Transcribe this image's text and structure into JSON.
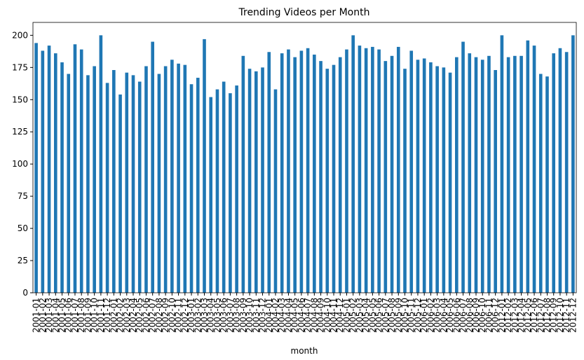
{
  "chart_data": {
    "type": "bar",
    "title": "Trending Videos per Month",
    "xlabel": "month",
    "categories": [
      "2001-01",
      "2001-02",
      "2001-03",
      "2001-04",
      "2001-05",
      "2001-06",
      "2001-07",
      "2001-08",
      "2001-09",
      "2001-10",
      "2001-11",
      "2001-12",
      "2002-01",
      "2002-02",
      "2002-03",
      "2002-04",
      "2002-05",
      "2002-06",
      "2002-07",
      "2002-08",
      "2002-09",
      "2002-10",
      "2002-11",
      "2002-12",
      "2003-01",
      "2003-02",
      "2003-03",
      "2003-04",
      "2003-05",
      "2003-06",
      "2003-07",
      "2003-08",
      "2003-09",
      "2003-10",
      "2003-11",
      "2003-12",
      "2004-01",
      "2004-02",
      "2004-03",
      "2004-04",
      "2004-05",
      "2004-06",
      "2004-07",
      "2004-08",
      "2004-09",
      "2004-10",
      "2004-11",
      "2004-12",
      "2005-01",
      "2005-02",
      "2005-03",
      "2005-04",
      "2005-05",
      "2005-06",
      "2005-07",
      "2005-08",
      "2005-09",
      "2005-10",
      "2005-11",
      "2005-12",
      "2006-01",
      "2006-02",
      "2006-03",
      "2006-04",
      "2006-05",
      "2006-06",
      "2006-07",
      "2006-08",
      "2006-09",
      "2006-10",
      "2006-11",
      "2006-12",
      "2012-01",
      "2012-02",
      "2012-03",
      "2012-04",
      "2012-05",
      "2012-06",
      "2012-07",
      "2012-08",
      "2012-09",
      "2012-10",
      "2012-11",
      "2012-12"
    ],
    "values": [
      194,
      188,
      192,
      186,
      179,
      170,
      193,
      189,
      169,
      176,
      200,
      163,
      173,
      154,
      171,
      169,
      164,
      176,
      195,
      170,
      176,
      181,
      178,
      177,
      162,
      167,
      197,
      152,
      158,
      164,
      155,
      161,
      184,
      174,
      172,
      175,
      187,
      158,
      186,
      189,
      183,
      188,
      190,
      185,
      180,
      174,
      177,
      183,
      189,
      200,
      192,
      190,
      191,
      189,
      180,
      184,
      191,
      174,
      188,
      181,
      182,
      179,
      176,
      175,
      171,
      183,
      195,
      186,
      183,
      181,
      184,
      173,
      200,
      183,
      184,
      184,
      196,
      192,
      170,
      168,
      186,
      190,
      187,
      200
    ],
    "color": "#1f77b4",
    "ylim": [
      0,
      210
    ],
    "yticks": [
      0,
      25,
      50,
      75,
      100,
      125,
      150,
      175,
      200
    ]
  }
}
